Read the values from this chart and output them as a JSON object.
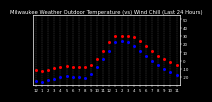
{
  "title": "Milwaukee Weather Outdoor Temperature (vs) Wind Chill (Last 24 Hours)",
  "title_fontsize": 3.8,
  "background_color": "#000000",
  "plot_bg_color": "#000000",
  "temp_color": "#ff0000",
  "wind_chill_color": "#0000ff",
  "grid_color": "#555555",
  "ylim": [
    -30,
    55
  ],
  "yticks": [
    -20,
    -10,
    0,
    10,
    20,
    30,
    40,
    50
  ],
  "ytick_labels": [
    "-20",
    "-10",
    "0",
    "10",
    "20",
    "30",
    "40",
    "50"
  ],
  "hours": [
    0,
    1,
    2,
    3,
    4,
    5,
    6,
    7,
    8,
    9,
    10,
    11,
    12,
    13,
    14,
    15,
    16,
    17,
    18,
    19,
    20,
    21,
    22,
    23
  ],
  "temp": [
    -12,
    -13,
    -11,
    -9,
    -8,
    -7,
    -8,
    -8,
    -8,
    -5,
    2,
    12,
    22,
    30,
    30,
    30,
    28,
    24,
    18,
    12,
    6,
    2,
    -2,
    -5
  ],
  "wind_chill": [
    -25,
    -26,
    -24,
    -22,
    -20,
    -19,
    -20,
    -20,
    -21,
    -16,
    -8,
    2,
    12,
    22,
    24,
    22,
    18,
    12,
    6,
    0,
    -6,
    -10,
    -14,
    -18
  ],
  "xtick_labels": [
    "12",
    "1",
    "2",
    "3",
    "4",
    "5",
    "6",
    "7",
    "8",
    "9",
    "10",
    "11",
    "12",
    "1",
    "2",
    "3",
    "4",
    "5",
    "6",
    "7",
    "8",
    "9",
    "10",
    "11"
  ],
  "xtick_fontsize": 2.8,
  "ytick_fontsize": 2.8,
  "line_width": 0.7,
  "marker_size": 1.2,
  "title_color": "#ffffff",
  "tick_color": "#ffffff",
  "spine_color": "#ffffff"
}
